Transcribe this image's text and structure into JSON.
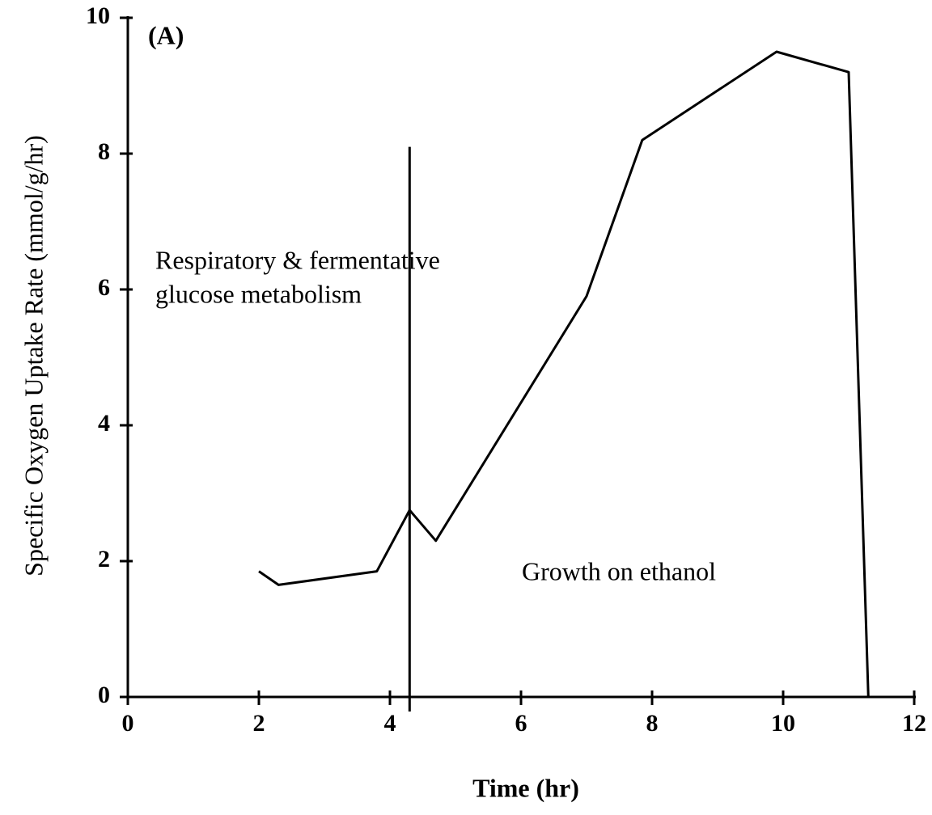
{
  "chart_data": {
    "type": "line",
    "panel_label": "(A)",
    "x_label": "Time (hr)",
    "y_label": "Specific Oxygen Uptake Rate (mmol/g/hr)",
    "annotations": [
      "Respiratory & fermentative",
      "glucose metabolism",
      "Growth on ethanol"
    ],
    "x": [
      2.0,
      2.3,
      3.8,
      4.3,
      4.7,
      7.0,
      7.85,
      9.9,
      11.0,
      11.3
    ],
    "series": [
      {
        "color": "#000000",
        "values": [
          1.85,
          1.65,
          1.85,
          2.75,
          2.3,
          5.9,
          8.2,
          9.5,
          9.2,
          0
        ]
      }
    ],
    "vline": {
      "x": 4.3,
      "y_top": 8.1
    },
    "xlim": [
      0,
      12
    ],
    "ylim": [
      0,
      10
    ],
    "xticks": [
      0,
      2,
      4,
      6,
      8,
      10,
      12
    ],
    "yticks": [
      0,
      2,
      4,
      6,
      8,
      10
    ],
    "grid": false
  }
}
